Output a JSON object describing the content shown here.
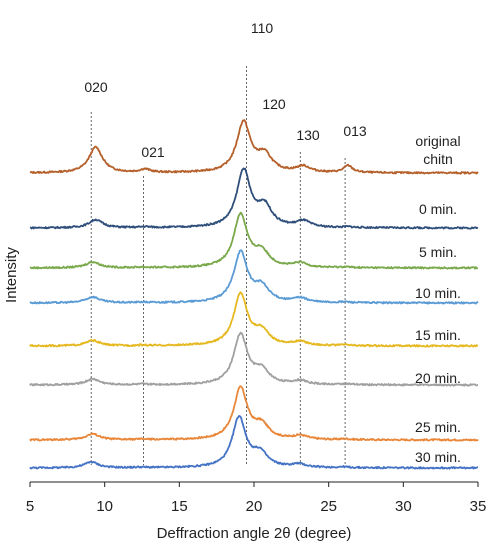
{
  "chart_data": {
    "type": "line",
    "xlabel": "Deffraction angle 2θ (degree)",
    "ylabel": "Intensity",
    "xlim": [
      5,
      35
    ],
    "x_ticks": [
      5,
      10,
      15,
      20,
      25,
      30,
      35
    ],
    "y_ticks": [],
    "grid": false,
    "legend": "none",
    "peaks": [
      {
        "label": "020",
        "x": 9.4
      },
      {
        "label": "021",
        "x": 12.7
      },
      {
        "label": "110",
        "x": 19.3
      },
      {
        "label": "120",
        "x": 20.7
      },
      {
        "label": "130",
        "x": 23.3
      },
      {
        "label": "013",
        "x": 26.3
      }
    ],
    "reference_lines_x": [
      9.1,
      12.6,
      19.5,
      23.1,
      26.1
    ],
    "series": [
      {
        "name": "original chitn",
        "color": "#b5602a",
        "baseline": 0.0,
        "amplitudes": [
          0.95,
          0.12,
          1.85,
          0.62,
          0.22,
          0.26
        ],
        "x_shift": 0.0
      },
      {
        "name": "0 min.",
        "color": "#2f4f7a",
        "baseline": 0.0,
        "amplitudes": [
          0.3,
          0.03,
          2.1,
          0.75,
          0.23,
          0.03
        ],
        "x_shift": 0.0
      },
      {
        "name": "5 min.",
        "color": "#7aa94c",
        "baseline": 0.0,
        "amplitudes": [
          0.22,
          0.02,
          1.95,
          0.55,
          0.16,
          0.03
        ],
        "x_shift": -0.2
      },
      {
        "name": "10 min.",
        "color": "#5b9bd5",
        "baseline": 0.0,
        "amplitudes": [
          0.22,
          0.02,
          1.85,
          0.55,
          0.16,
          0.03
        ],
        "x_shift": -0.2
      },
      {
        "name": "15 min.",
        "color": "#e6b820",
        "baseline": 0.0,
        "amplitudes": [
          0.2,
          0.02,
          1.9,
          0.5,
          0.14,
          0.03
        ],
        "x_shift": -0.2
      },
      {
        "name": "20 min.",
        "color": "#a0a0a0",
        "baseline": 0.0,
        "amplitudes": [
          0.22,
          0.02,
          1.85,
          0.5,
          0.14,
          0.03
        ],
        "x_shift": -0.2
      },
      {
        "name": "25 min.",
        "color": "#e8873a",
        "baseline": 0.0,
        "amplitudes": [
          0.22,
          0.02,
          1.9,
          0.5,
          0.14,
          0.03
        ],
        "x_shift": -0.2
      },
      {
        "name": "30 min.",
        "color": "#4472c4",
        "baseline": 0.0,
        "amplitudes": [
          0.22,
          0.02,
          1.85,
          0.5,
          0.12,
          0.03
        ],
        "x_shift": -0.3
      }
    ]
  }
}
